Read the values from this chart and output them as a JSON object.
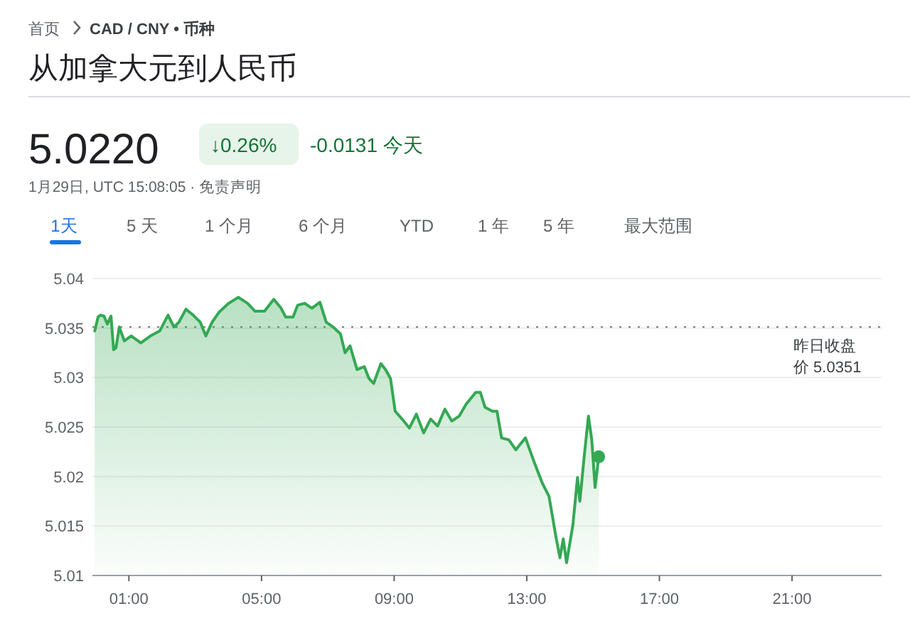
{
  "chart_data": {
    "type": "area",
    "title": "从加拿大元到人民币",
    "annotations": [
      "首页",
      "CAD / CNY • 币种",
      "5.0220",
      "↓0.26%",
      "-0.0131 今天",
      "1月29日, UTC 15:08:05 · 免责声明",
      "1天",
      "5 天",
      "1 个月",
      "6 个月",
      "YTD",
      "1 年",
      "5 年",
      "最大范围"
    ],
    "x": [
      -0.03,
      0.07,
      0.14,
      0.25,
      0.35,
      0.46,
      0.54,
      0.61,
      0.71,
      0.86,
      1.07,
      1.36,
      1.65,
      1.93,
      2.18,
      2.36,
      2.51,
      2.72,
      2.94,
      3.15,
      3.32,
      3.51,
      3.72,
      4.01,
      4.3,
      4.58,
      4.8,
      5.09,
      5.37,
      5.59,
      5.73,
      5.95,
      6.09,
      6.3,
      6.52,
      6.76,
      6.95,
      7.16,
      7.38,
      7.52,
      7.67,
      7.88,
      8.1,
      8.24,
      8.38,
      8.6,
      8.74,
      8.89,
      9.03,
      9.24,
      9.46,
      9.67,
      9.89,
      10.1,
      10.31,
      10.53,
      10.74,
      10.96,
      11.17,
      11.46,
      11.6,
      11.74,
      11.96,
      12.1,
      12.24,
      12.46,
      12.67,
      12.96,
      13.24,
      13.46,
      13.67,
      13.89,
      14.0,
      14.1,
      14.2,
      14.39,
      14.53,
      14.6,
      14.74,
      14.86,
      14.96,
      15.06,
      15.17
    ],
    "series": [
      {
        "color": "#34a853",
        "values": [
          5.0347,
          5.0361,
          5.0363,
          5.0362,
          5.0354,
          5.0362,
          5.0328,
          5.033,
          5.0351,
          5.0337,
          5.0342,
          5.0335,
          5.0342,
          5.0347,
          5.0363,
          5.0351,
          5.0356,
          5.0369,
          5.0363,
          5.0356,
          5.0342,
          5.0356,
          5.0366,
          5.0375,
          5.0381,
          5.0375,
          5.0367,
          5.0367,
          5.0379,
          5.037,
          5.0361,
          5.0361,
          5.0373,
          5.0375,
          5.037,
          5.0376,
          5.0356,
          5.0351,
          5.0344,
          5.0325,
          5.0332,
          5.0308,
          5.0311,
          5.0299,
          5.0294,
          5.0314,
          5.0308,
          5.0299,
          5.0266,
          5.0258,
          5.0249,
          5.0263,
          5.0244,
          5.0258,
          5.0251,
          5.0268,
          5.0256,
          5.0261,
          5.0273,
          5.0285,
          5.0285,
          5.027,
          5.0266,
          5.0266,
          5.0239,
          5.0237,
          5.0227,
          5.0239,
          5.0213,
          5.0194,
          5.018,
          5.0137,
          5.0118,
          5.0137,
          5.0113,
          5.0151,
          5.0199,
          5.0175,
          5.0223,
          5.0261,
          5.0237,
          5.0189,
          5.022
        ]
      }
    ],
    "xlim": [
      -0.1,
      23.7
    ],
    "xticks": [
      {
        "value": 1,
        "label": "01:00"
      },
      {
        "value": 5,
        "label": "05:00"
      },
      {
        "value": 9,
        "label": "09:00"
      },
      {
        "value": 13,
        "label": "13:00"
      },
      {
        "value": 17,
        "label": "17:00"
      },
      {
        "value": 21,
        "label": "21:00"
      }
    ],
    "ylim": [
      5.01,
      5.04
    ],
    "yticks": [
      5.01,
      5.015,
      5.02,
      5.025,
      5.03,
      5.035,
      5.04
    ],
    "grid": "y",
    "ref_lines": [
      {
        "axis": "y",
        "value": 5.0351,
        "label": "昨日收盘价 5.0351",
        "line_style": "dotted",
        "color": "#757575"
      }
    ]
  }
}
